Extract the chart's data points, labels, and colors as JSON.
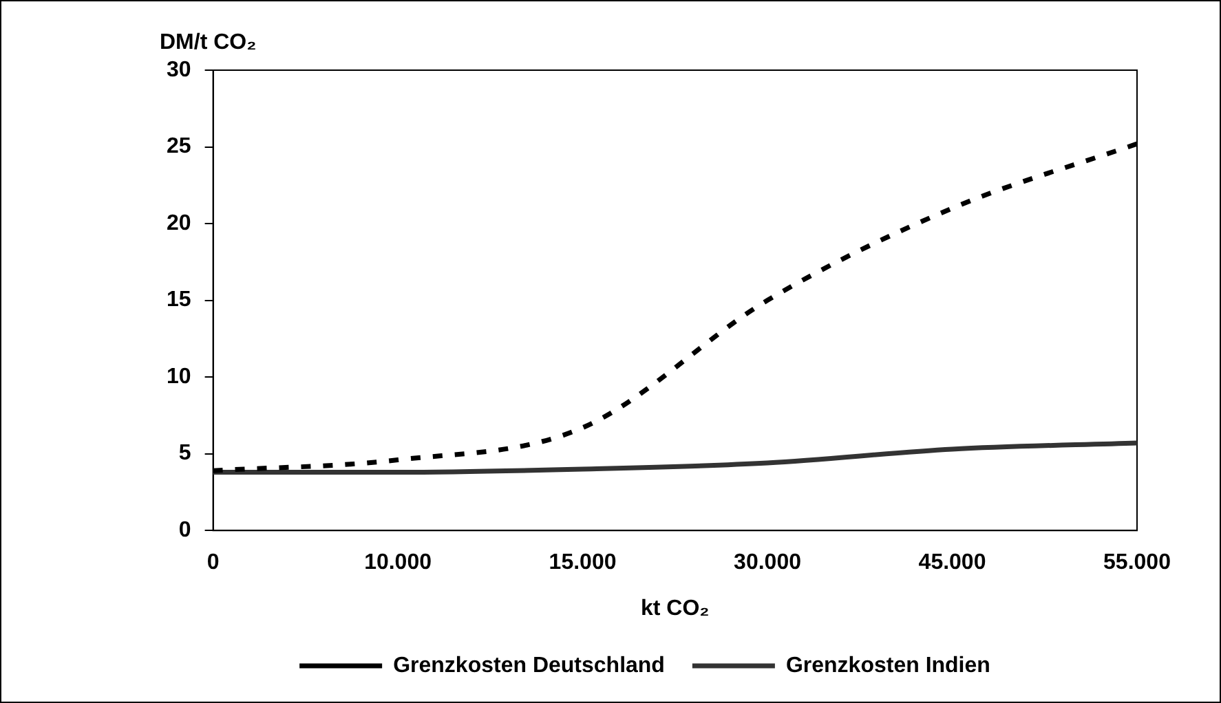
{
  "chart_data": {
    "type": "line",
    "ylabel": "DM/t CO₂",
    "xlabel": "kt CO₂",
    "categories": [
      "0",
      "10.000",
      "15.000",
      "30.000",
      "45.000",
      "55.000"
    ],
    "series": [
      {
        "name": "Grenzkosten Deutschland",
        "color": "#000000",
        "line_style": "dashed",
        "values": [
          3.9,
          4.6,
          6.7,
          15,
          21,
          25.2
        ]
      },
      {
        "name": "Grenzkosten Indien",
        "color": "#333333",
        "line_style": "solid",
        "values": [
          3.8,
          3.8,
          4.0,
          4.4,
          5.3,
          5.7
        ]
      }
    ],
    "ylim": [
      0,
      30
    ],
    "yticks": [
      0,
      5,
      10,
      15,
      20,
      25,
      30
    ],
    "grid": false,
    "legend": "bottom",
    "marker": "none"
  }
}
